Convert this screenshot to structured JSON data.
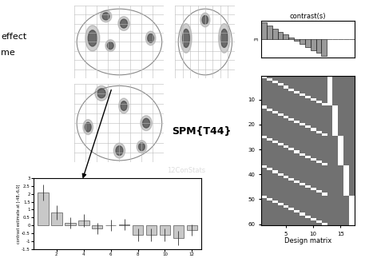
{
  "header": {
    "lines": [
      "effect",
      "me"
    ]
  },
  "glass_brain": {
    "statistic": "SPM{T44}",
    "watermark": "12ConStats"
  },
  "design_matrix": {
    "title": "contrast(s)",
    "contrast_number": "3",
    "xlabel": "Design matrix",
    "conditions": 12,
    "subjects": 5,
    "contrast_weights": [
      11,
      9,
      7,
      5,
      3,
      1,
      -1,
      -3,
      -5,
      -7,
      -9,
      -11,
      0,
      0,
      0,
      0,
      0
    ],
    "contrast_ylim": [
      -12,
      12
    ],
    "xlim": [
      0.5,
      17.5
    ],
    "ylim": [
      60.5,
      0.5
    ],
    "xticks": [
      5,
      10,
      15
    ],
    "yticks": [
      10,
      20,
      30,
      40,
      50,
      60
    ]
  },
  "chart_data": {
    "type": "bar",
    "ylabel": "contrast estimate at [-48,-6,0]",
    "x": [
      1,
      2,
      3,
      4,
      5,
      6,
      7,
      8,
      9,
      10,
      11,
      12
    ],
    "values": [
      2.1,
      0.8,
      0.15,
      0.3,
      -0.2,
      0.0,
      0.05,
      -0.6,
      -0.6,
      -0.6,
      -0.8,
      -0.3
    ],
    "errors": [
      0.5,
      0.45,
      0.35,
      0.4,
      0.35,
      0.35,
      0.35,
      0.4,
      0.4,
      0.4,
      0.45,
      0.35
    ],
    "color": "#c8c8c8",
    "xlim": [
      0.3,
      12.7
    ],
    "ylim": [
      -1.5,
      3
    ],
    "xticks": [
      2,
      4,
      6,
      8,
      10,
      12
    ],
    "yticks": [
      -1.5,
      -1,
      -0.5,
      0,
      0.5,
      1,
      1.5,
      2,
      2.5,
      3
    ]
  }
}
